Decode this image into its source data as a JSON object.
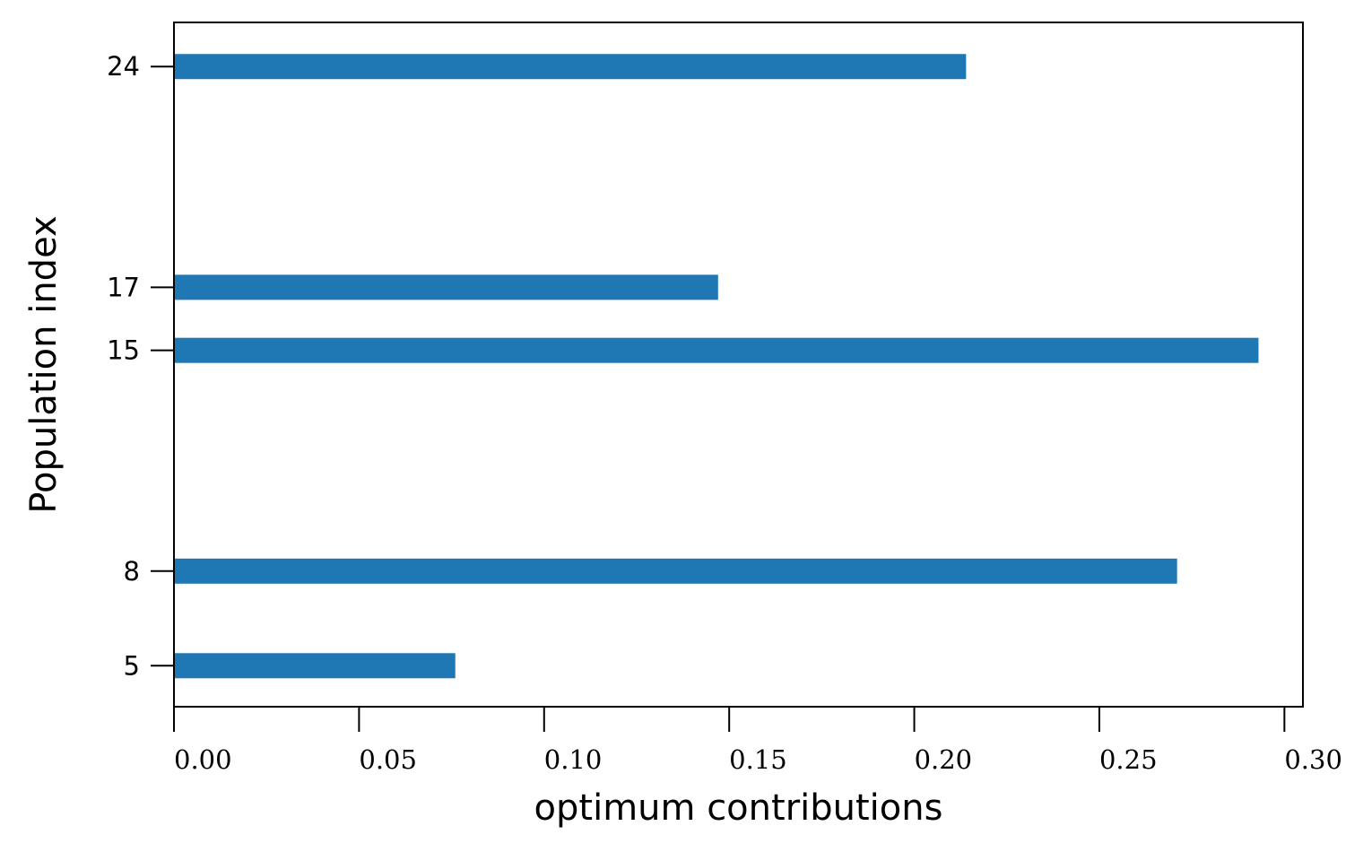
{
  "chart_data": {
    "type": "bar",
    "orientation": "horizontal",
    "title": "",
    "xlabel": "optimum contributions",
    "ylabel": "Population index",
    "categories": [
      "5",
      "8",
      "15",
      "17",
      "24"
    ],
    "category_positions": [
      5,
      8,
      15,
      17,
      24
    ],
    "values": [
      0.076,
      0.271,
      0.293,
      0.147,
      0.214
    ],
    "xlim": [
      0,
      0.305
    ],
    "ylim": [
      3.7,
      25.4
    ],
    "xticks": [
      0.0,
      0.05,
      0.1,
      0.15,
      0.2,
      0.25,
      0.3
    ],
    "xtick_labels": [
      "0.00",
      "0.05",
      "0.10",
      "0.15",
      "0.20",
      "0.25",
      "0.30"
    ],
    "yticks": [
      5,
      8,
      15,
      17,
      24
    ],
    "ytick_labels": [
      "5",
      "8",
      "15",
      "17",
      "24"
    ],
    "bar_color": "#1f77b4",
    "grid": false,
    "legend": "none"
  }
}
